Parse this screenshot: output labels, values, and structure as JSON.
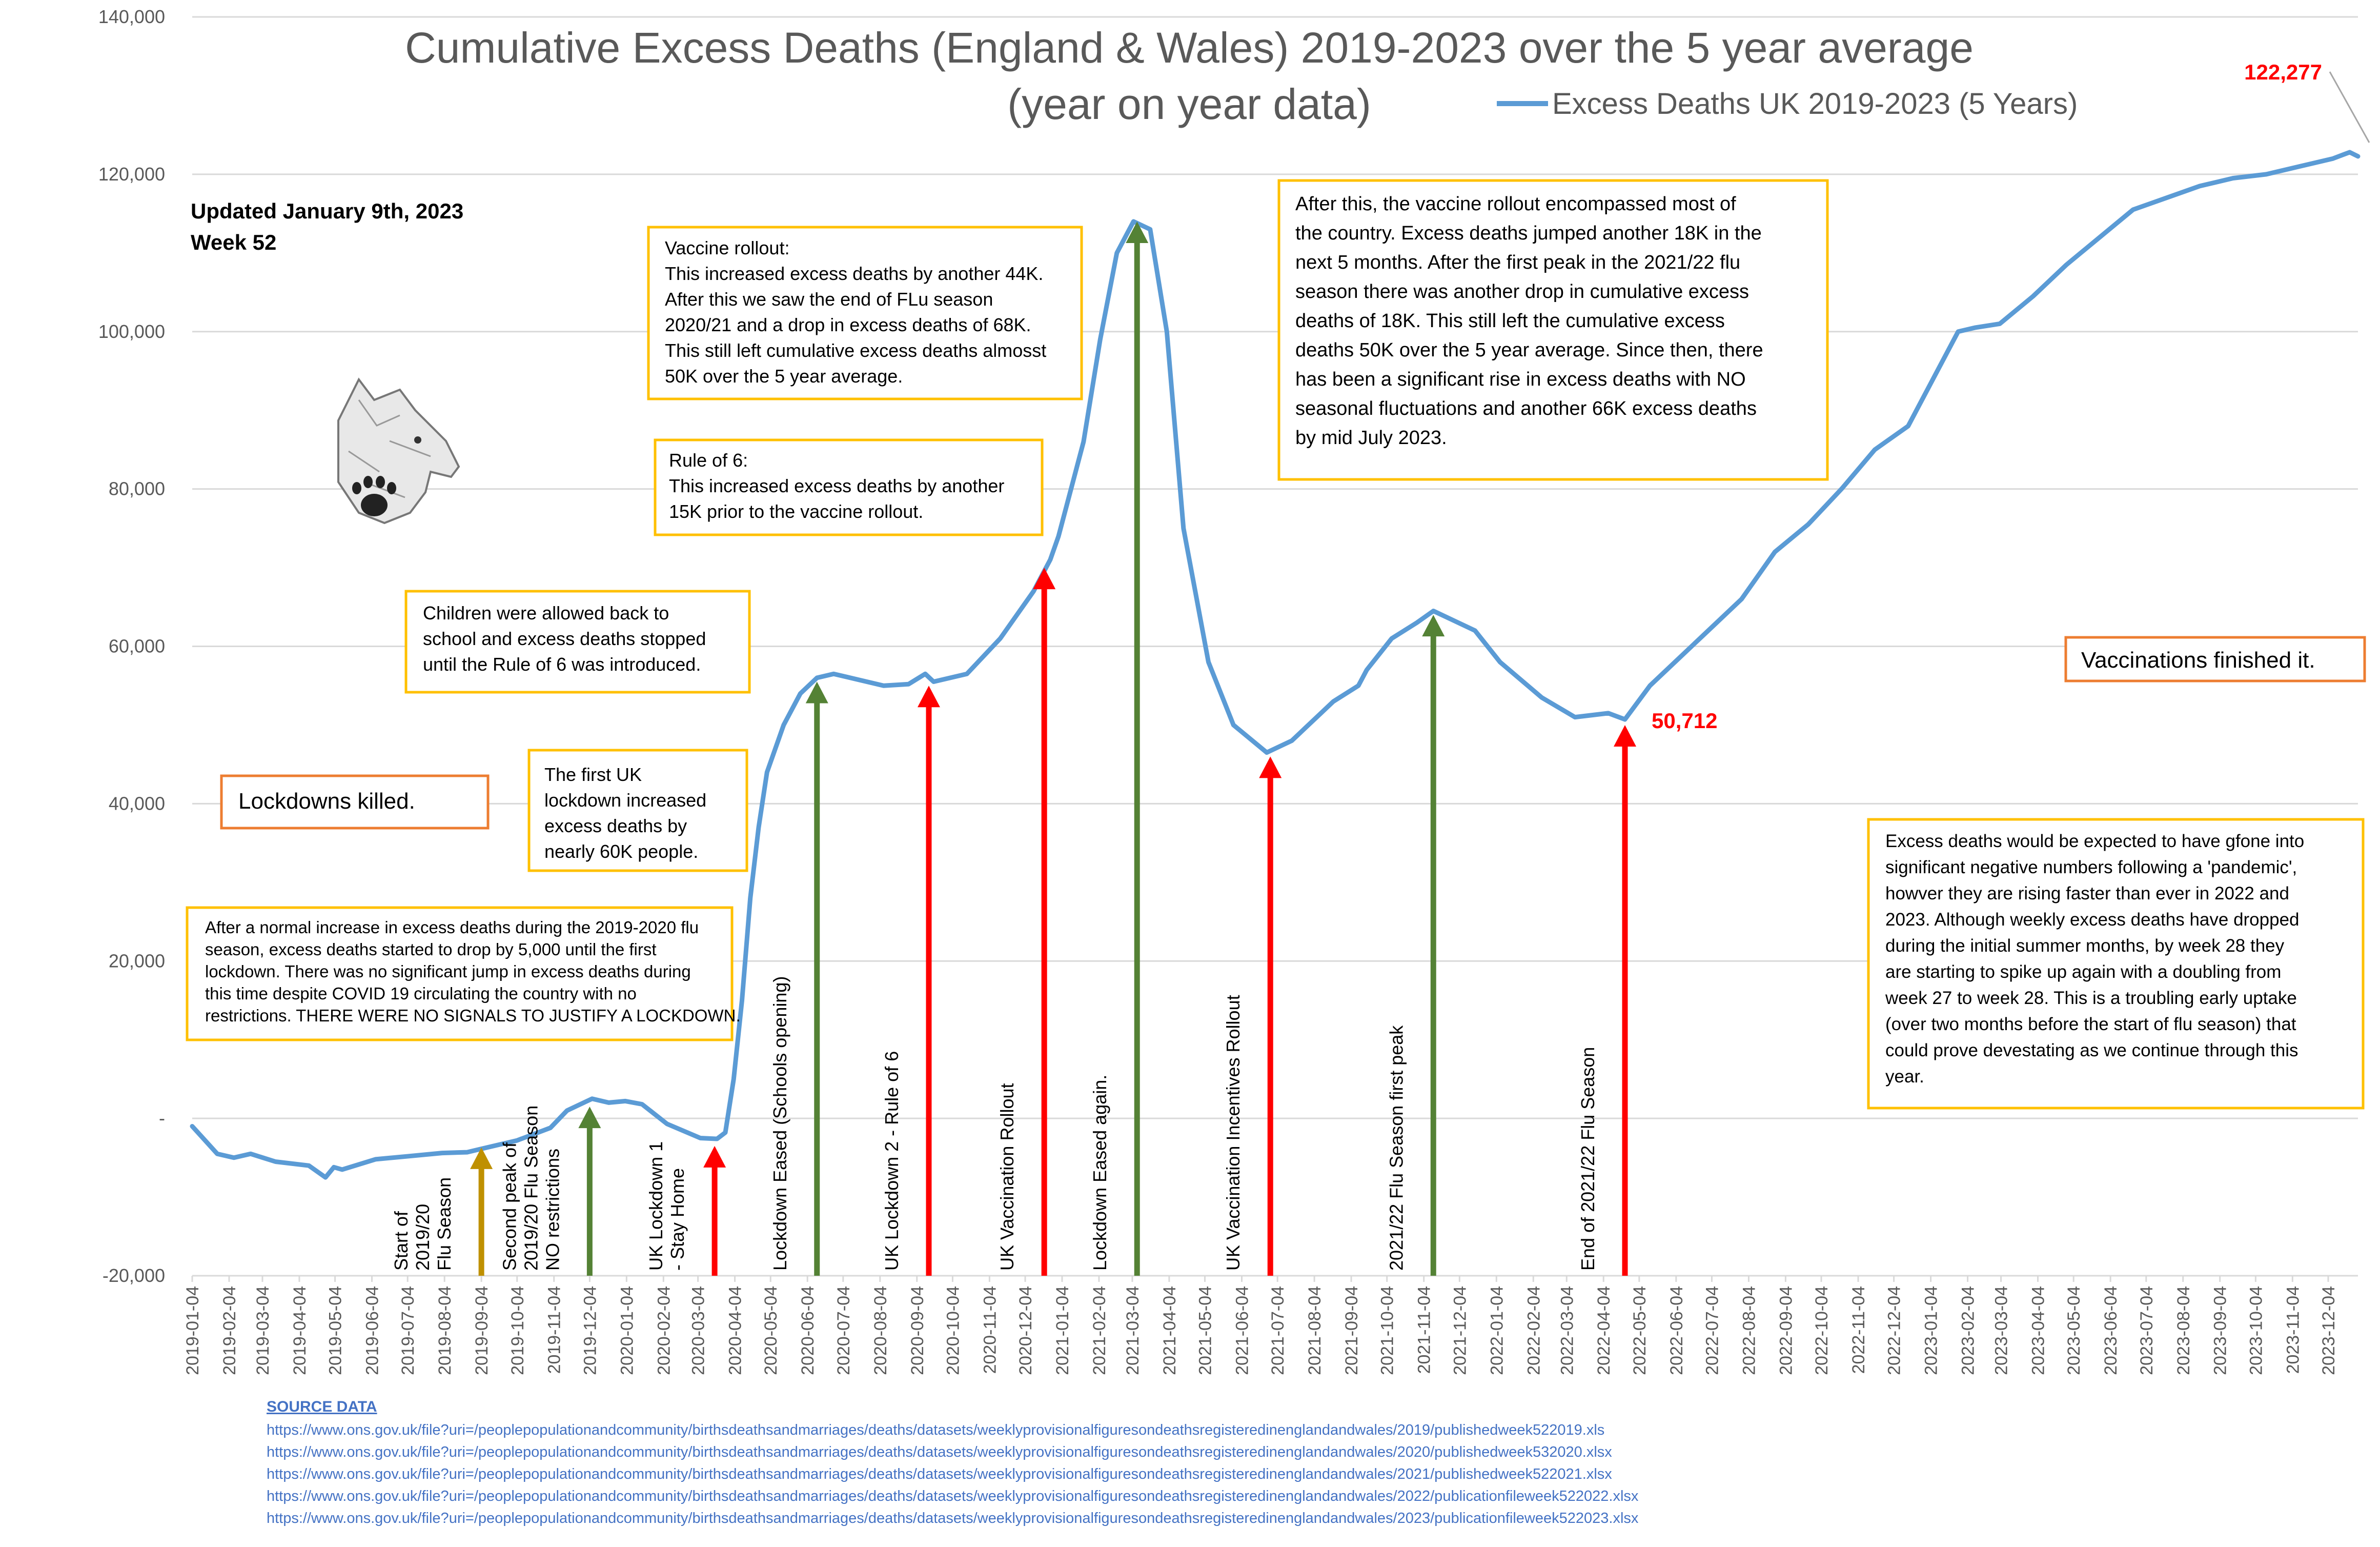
{
  "chart_data": {
    "type": "line",
    "title_line1": "Cumulative Excess Deaths (England & Wales) 2019-2023 over the 5 year average",
    "title_line2": "(year on year data)",
    "series": [
      {
        "name": "Excess Deaths UK 2019-2023 (5 Years)",
        "color": "#5b9bd5",
        "points": [
          [
            "2019-01-04",
            -1000
          ],
          [
            "2019-01-25",
            -4500
          ],
          [
            "2019-02-08",
            -5000
          ],
          [
            "2019-02-22",
            -4500
          ],
          [
            "2019-03-15",
            -5500
          ],
          [
            "2019-04-12",
            -6000
          ],
          [
            "2019-04-26",
            -7500
          ],
          [
            "2019-05-03",
            -6200
          ],
          [
            "2019-05-10",
            -6500
          ],
          [
            "2019-06-07",
            -5200
          ],
          [
            "2019-07-05",
            -4800
          ],
          [
            "2019-08-02",
            -4400
          ],
          [
            "2019-08-23",
            -4300
          ],
          [
            "2019-09-06",
            -3800
          ],
          [
            "2019-10-04",
            -2800
          ],
          [
            "2019-11-01",
            -1200
          ],
          [
            "2019-11-15",
            1000
          ],
          [
            "2019-11-29",
            2000
          ],
          [
            "2019-12-06",
            2500
          ],
          [
            "2019-12-20",
            2000
          ],
          [
            "2020-01-03",
            2200
          ],
          [
            "2020-01-17",
            1800
          ],
          [
            "2020-02-07",
            -700
          ],
          [
            "2020-03-06",
            -2500
          ],
          [
            "2020-03-20",
            -2600
          ],
          [
            "2020-03-27",
            -1800
          ],
          [
            "2020-04-03",
            5000
          ],
          [
            "2020-04-10",
            15000
          ],
          [
            "2020-04-17",
            28000
          ],
          [
            "2020-04-24",
            37000
          ],
          [
            "2020-05-01",
            44000
          ],
          [
            "2020-05-15",
            50000
          ],
          [
            "2020-05-29",
            54000
          ],
          [
            "2020-06-12",
            56000
          ],
          [
            "2020-06-26",
            56500
          ],
          [
            "2020-07-10",
            56000
          ],
          [
            "2020-08-07",
            55000
          ],
          [
            "2020-08-28",
            55200
          ],
          [
            "2020-09-11",
            56500
          ],
          [
            "2020-09-18",
            55500
          ],
          [
            "2020-10-16",
            56500
          ],
          [
            "2020-11-13",
            61000
          ],
          [
            "2020-12-11",
            67000
          ],
          [
            "2020-12-25",
            71000
          ],
          [
            "2021-01-01",
            74000
          ],
          [
            "2021-01-08",
            78000
          ],
          [
            "2021-01-22",
            86000
          ],
          [
            "2021-02-05",
            99000
          ],
          [
            "2021-02-19",
            110000
          ],
          [
            "2021-03-05",
            114000
          ],
          [
            "2021-03-19",
            113000
          ],
          [
            "2021-04-02",
            100000
          ],
          [
            "2021-04-16",
            75000
          ],
          [
            "2021-05-07",
            58000
          ],
          [
            "2021-05-28",
            50000
          ],
          [
            "2021-06-25",
            46500
          ],
          [
            "2021-07-16",
            48000
          ],
          [
            "2021-08-20",
            53000
          ],
          [
            "2021-09-10",
            55000
          ],
          [
            "2021-09-17",
            57000
          ],
          [
            "2021-10-08",
            61000
          ],
          [
            "2021-10-29",
            63000
          ],
          [
            "2021-11-12",
            64500
          ],
          [
            "2021-11-26",
            63500
          ],
          [
            "2021-12-17",
            62000
          ],
          [
            "2022-01-07",
            58000
          ],
          [
            "2022-02-11",
            53500
          ],
          [
            "2022-03-11",
            51000
          ],
          [
            "2022-04-08",
            51500
          ],
          [
            "2022-04-22",
            50712
          ],
          [
            "2022-05-13",
            55000
          ],
          [
            "2022-06-03",
            58000
          ],
          [
            "2022-07-01",
            62000
          ],
          [
            "2022-07-29",
            66000
          ],
          [
            "2022-08-26",
            72000
          ],
          [
            "2022-09-23",
            75500
          ],
          [
            "2022-10-21",
            80000
          ],
          [
            "2022-11-18",
            85000
          ],
          [
            "2022-12-16",
            88000
          ],
          [
            "2022-12-30",
            92000
          ],
          [
            "2023-01-13",
            96000
          ],
          [
            "2023-01-27",
            100000
          ],
          [
            "2023-02-10",
            100500
          ],
          [
            "2023-03-03",
            101000
          ],
          [
            "2023-03-31",
            104500
          ],
          [
            "2023-04-28",
            108500
          ],
          [
            "2023-05-26",
            112000
          ],
          [
            "2023-06-23",
            115500
          ],
          [
            "2023-07-21",
            117000
          ],
          [
            "2023-08-18",
            118500
          ],
          [
            "2023-09-15",
            119500
          ],
          [
            "2023-10-13",
            120000
          ],
          [
            "2023-11-10",
            121000
          ],
          [
            "2023-12-08",
            122000
          ],
          [
            "2023-12-22",
            122800
          ],
          [
            "2023-12-29",
            122277
          ]
        ]
      }
    ],
    "y_axis": {
      "min": -20000,
      "max": 140000,
      "step": 20000,
      "tick_labels": [
        "-20,000",
        "-",
        "20,000",
        "40,000",
        "60,000",
        "80,000",
        "100,000",
        "120,000",
        "140,000"
      ]
    },
    "x_axis": {
      "tick_labels": [
        "2019-01-04",
        "2019-02-04",
        "2019-03-04",
        "2019-04-04",
        "2019-05-04",
        "2019-06-04",
        "2019-07-04",
        "2019-08-04",
        "2019-09-04",
        "2019-10-04",
        "2019-11-04",
        "2019-12-04",
        "2020-01-04",
        "2020-02-04",
        "2020-03-04",
        "2020-04-04",
        "2020-05-04",
        "2020-06-04",
        "2020-07-04",
        "2020-08-04",
        "2020-09-04",
        "2020-10-04",
        "2020-11-04",
        "2020-12-04",
        "2021-01-04",
        "2021-02-04",
        "2021-03-04",
        "2021-04-04",
        "2021-05-04",
        "2021-06-04",
        "2021-07-04",
        "2021-08-04",
        "2021-09-04",
        "2021-10-04",
        "2021-11-04",
        "2021-12-04",
        "2022-01-04",
        "2022-02-04",
        "2022-03-04",
        "2022-04-04",
        "2022-05-04",
        "2022-06-04",
        "2022-07-04",
        "2022-08-04",
        "2022-09-04",
        "2022-10-04",
        "2022-11-04",
        "2022-12-04",
        "2023-01-04",
        "2023-02-04",
        "2023-03-04",
        "2023-04-04",
        "2023-05-04",
        "2023-06-04",
        "2023-07-04",
        "2023-08-04",
        "2023-09-04",
        "2023-10-04",
        "2023-11-04",
        "2023-12-04"
      ]
    },
    "grid": "horizontal",
    "legend_position": "top-right",
    "value_labels": [
      {
        "text": "122,277",
        "date": "2023-12-29",
        "value": 122277
      },
      {
        "text": "50,712",
        "date": "2022-04-22",
        "value": 50712
      }
    ],
    "events": [
      {
        "date": "2019-09-04",
        "lines": [
          "Start of",
          "2019/20",
          "Flu Season"
        ],
        "color": "#bf9000",
        "tip": -3700
      },
      {
        "date": "2019-12-04",
        "lines": [
          "Second peak of",
          "2019/20 Flu Season",
          "NO restrictions"
        ],
        "color": "#548235",
        "tip": 1500
      },
      {
        "date": "2020-03-18",
        "lines": [
          "UK Lockdown 1",
          "- Stay Home"
        ],
        "color": "#ff0000",
        "tip": -3500
      },
      {
        "date": "2020-06-12",
        "lines": [
          "Lockdown Eased (Schools opening)"
        ],
        "color": "#548235",
        "tip": 55500
      },
      {
        "date": "2020-09-14",
        "lines": [
          "UK Lockdown 2 - Rule of 6"
        ],
        "color": "#ff0000",
        "tip": 55000
      },
      {
        "date": "2020-12-20",
        "lines": [
          "UK Vaccination Rollout"
        ],
        "color": "#ff0000",
        "tip": 70000
      },
      {
        "date": "2021-03-08",
        "lines": [
          "Lockdown Eased again."
        ],
        "color": "#548235",
        "tip": 114000
      },
      {
        "date": "2021-06-28",
        "lines": [
          "UK Vaccination Incentives Rollout"
        ],
        "color": "#ff0000",
        "tip": 46000
      },
      {
        "date": "2021-11-12",
        "lines": [
          "2021/22 Flu Season first peak"
        ],
        "color": "#548235",
        "tip": 64000
      },
      {
        "date": "2022-04-22",
        "lines": [
          "End of 2021/22 Flu Season"
        ],
        "color": "#ff0000",
        "tip": 50000
      }
    ]
  },
  "updated": [
    "Updated January 9th, 2023",
    "Week 52"
  ],
  "annotations": [
    {
      "id": "vaccine-rollout-note",
      "border": "#ffc000",
      "lines": [
        "Vaccine rollout:",
        "This increased excess deaths by another 44K.",
        "After this we saw the end of FLu season",
        "2020/21 and a drop in excess deaths of 68K.",
        "This still left cumulative excess deaths almosst",
        "50K over the 5 year average."
      ]
    },
    {
      "id": "rule-of-6-note",
      "border": "#ffc000",
      "lines": [
        "Rule of 6:",
        "This increased excess deaths by another",
        "15K prior to the vaccine rollout."
      ]
    },
    {
      "id": "children-school-note",
      "border": "#ffc000",
      "lines": [
        "Children were allowed back to",
        "school and excess deaths stopped",
        "until the Rule of 6 was introduced."
      ]
    },
    {
      "id": "first-lockdown-note",
      "border": "#ffc000",
      "lines": [
        "The first UK",
        "lockdown increased",
        "excess deaths by",
        "nearly 60K people."
      ]
    },
    {
      "id": "lockdowns-killed-note",
      "border": "#ed7d31",
      "lines": [
        "Lockdowns killed."
      ]
    },
    {
      "id": "vaccinations-finished-note",
      "border": "#ed7d31",
      "lines": [
        "Vaccinations finished it."
      ]
    },
    {
      "id": "normal-increase-note",
      "border": "#ffc000",
      "lines": [
        "After a normal increase in excess deaths during the 2019-2020 flu",
        "season, excess deaths started to drop by 5,000 until the first",
        "lockdown. There was no significant jump in excess deaths during",
        "this time despite COVID 19 circulating the country with no",
        "restrictions. THERE WERE NO SIGNALS TO JUSTIFY A LOCKDOWN."
      ]
    },
    {
      "id": "after-vaccine-note",
      "border": "#ffc000",
      "lines": [
        "After this, the vaccine rollout encompassed most of",
        "the country. Excess deaths jumped another 18K in the",
        "next 5 months. After the first peak in the 2021/22 flu",
        "season there was another drop in cumulative excess",
        "deaths of 18K.  This still left the cumulative excess",
        "deaths 50K over the 5 year average. Since then, there",
        "has been a significant rise in excess deaths with NO",
        "seasonal fluctuations and another 66K excess deaths",
        "by mid July 2023."
      ]
    },
    {
      "id": "negative-numbers-note",
      "border": "#ffc000",
      "lines": [
        "Excess deaths would be expected to have gfone into",
        "significant negative numbers following a 'pandemic',",
        "howver they are rising faster than ever in 2022 and",
        "2023. Although weekly excess deaths have dropped",
        "during the initial summer months, by week 28 they",
        "are starting to spike up again with a doubling from",
        "week 27 to week 28. This is a troubling early uptake",
        "(over two months before the start of flu season) that",
        "could prove devestating as we continue through this",
        "year."
      ]
    }
  ],
  "logo": {
    "icon": "wolf-paw-icon"
  },
  "sources": {
    "heading": "SOURCE DATA",
    "links": [
      "https://www.ons.gov.uk/file?uri=/peoplepopulationandcommunity/birthsdeathsandmarriages/deaths/datasets/weeklyprovisionalfiguresondeathsregisteredinenglandandwales/2019/publishedweek522019.xls",
      "https://www.ons.gov.uk/file?uri=/peoplepopulationandcommunity/birthsdeathsandmarriages/deaths/datasets/weeklyprovisionalfiguresondeathsregisteredinenglandandwales/2020/publishedweek532020.xlsx",
      "https://www.ons.gov.uk/file?uri=/peoplepopulationandcommunity/birthsdeathsandmarriages/deaths/datasets/weeklyprovisionalfiguresondeathsregisteredinenglandandwales/2021/publishedweek522021.xlsx",
      "https://www.ons.gov.uk/file?uri=/peoplepopulationandcommunity/birthsdeathsandmarriages/deaths/datasets/weeklyprovisionalfiguresondeathsregisteredinenglandandwales/2022/publicationfileweek522022.xlsx",
      "https://www.ons.gov.uk/file?uri=/peoplepopulationandcommunity/birthsdeathsandmarriages/deaths/datasets/weeklyprovisionalfiguresondeathsregisteredinenglandandwales/2023/publicationfileweek522023.xlsx"
    ]
  }
}
